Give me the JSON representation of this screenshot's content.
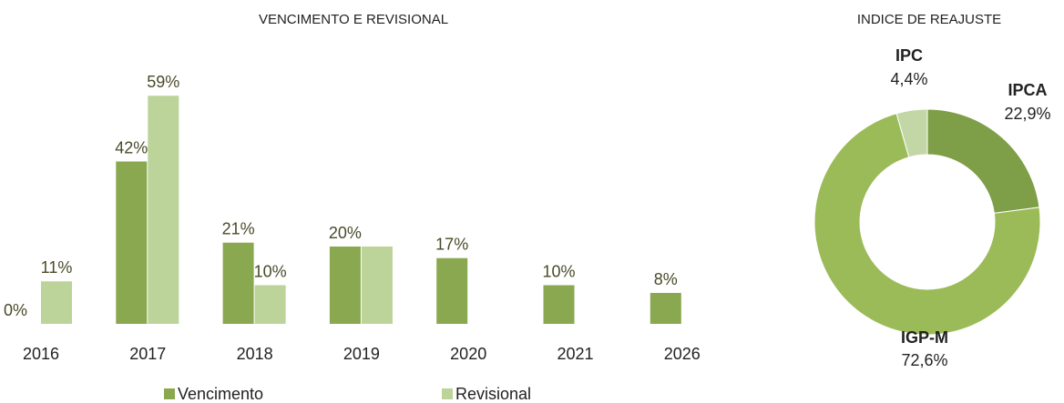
{
  "chart_data": [
    {
      "type": "bar",
      "title": "VENCIMENTO E REVISIONAL",
      "categories": [
        "2016",
        "2017",
        "2018",
        "2019",
        "2020",
        "2021",
        "2026"
      ],
      "series": [
        {
          "name": "Vencimento",
          "color": "#8aa84f",
          "values": [
            0,
            42,
            21,
            20,
            17,
            10,
            8
          ],
          "value_labels": [
            "0%",
            "42%",
            "21%",
            "20%",
            "17%",
            "10%",
            "8%"
          ]
        },
        {
          "name": "Revisional",
          "color": "#bcd39a",
          "values": [
            11,
            59,
            10,
            20,
            null,
            null,
            null
          ],
          "value_labels": [
            "11%",
            "59%",
            "10%",
            null,
            null,
            null,
            null
          ]
        }
      ]
    },
    {
      "type": "donut",
      "title": "INDICE DE REAJUSTE",
      "categories": [
        "IPCA",
        "IGP-M",
        "IPC"
      ],
      "values": [
        22.9,
        72.6,
        4.4
      ],
      "value_labels": [
        "22,9%",
        "72,6%",
        "4,4%"
      ],
      "colors": [
        "#7e9e48",
        "#9bbb59",
        "#c3d7a6"
      ]
    }
  ]
}
